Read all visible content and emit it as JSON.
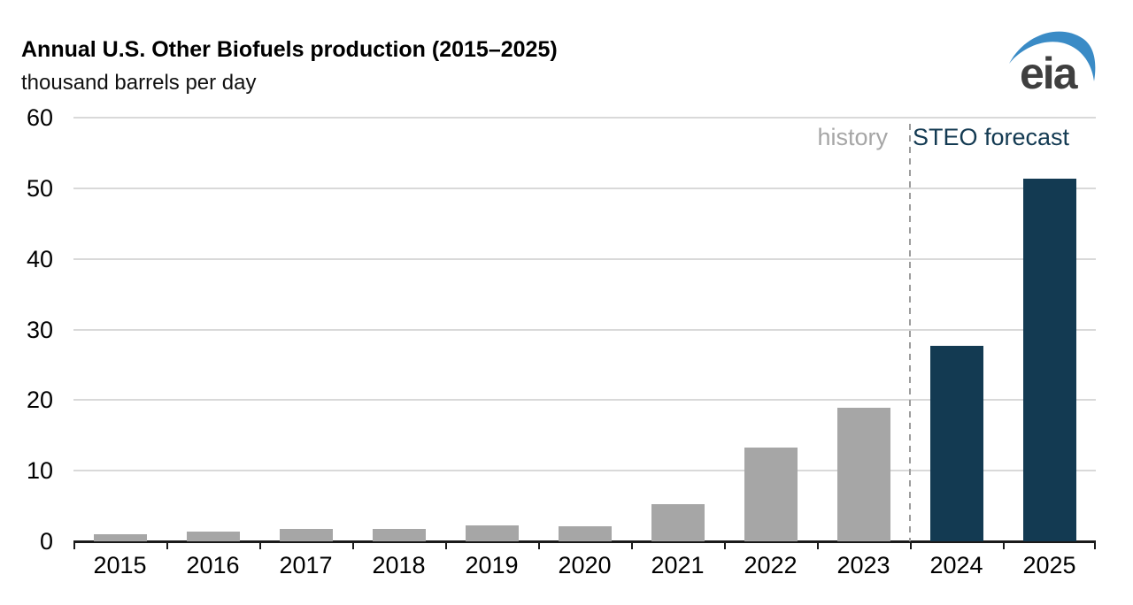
{
  "header": {
    "title": "Annual U.S. Other Biofuels production (2015–2025)",
    "subtitle": "thousand barrels per day"
  },
  "logo": {
    "text": "eia",
    "text_color": "#3f3f3f",
    "swoosh_color": "#3a8bc6"
  },
  "chart_data": {
    "type": "bar",
    "title": "Annual U.S. Other Biofuels production (2015–2025)",
    "ylabel": "thousand barrels per day",
    "xlabel": "",
    "categories": [
      "2015",
      "2016",
      "2017",
      "2018",
      "2019",
      "2020",
      "2021",
      "2022",
      "2023",
      "2024",
      "2025"
    ],
    "series": [
      {
        "name": "history",
        "color": "#a6a6a6",
        "values": [
          1.0,
          1.4,
          1.7,
          1.7,
          2.2,
          2.1,
          5.2,
          13.3,
          18.9,
          null,
          null
        ]
      },
      {
        "name": "STEO forecast",
        "color": "#133a52",
        "values": [
          null,
          null,
          null,
          null,
          null,
          null,
          null,
          null,
          null,
          27.7,
          51.3
        ]
      }
    ],
    "ylim": [
      0,
      60
    ],
    "yticks": [
      0,
      10,
      20,
      30,
      40,
      50,
      60
    ],
    "grid": "horizontal",
    "gridline_color": "#d9d9d9",
    "axis_color": "#1a1a1a",
    "divider_after_category": "2023",
    "divider_color": "#9d9d9d",
    "annotations": [
      {
        "text": "history",
        "color": "#a6a6a6",
        "side": "left-of-divider"
      },
      {
        "text": "STEO forecast",
        "color": "#133a52",
        "side": "right-of-divider"
      }
    ]
  }
}
